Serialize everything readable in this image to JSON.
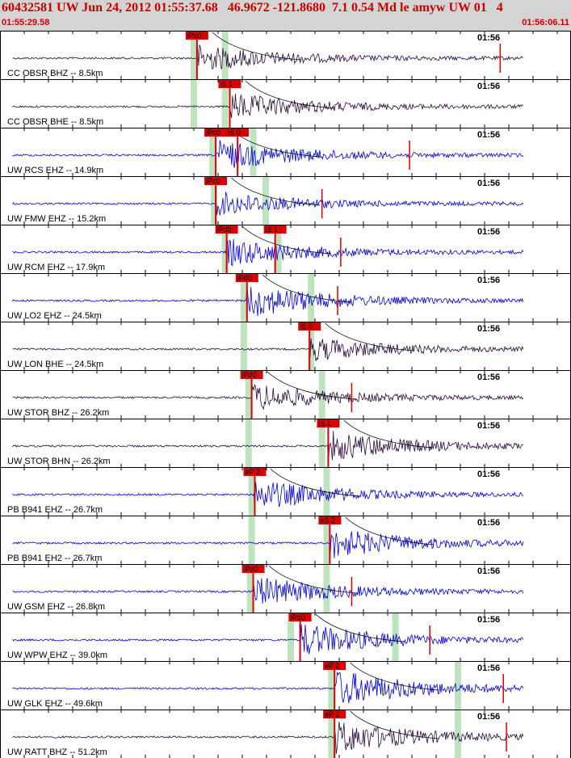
{
  "header": {
    "title": "60432581 UW Jun 24, 2012 01:55:37.68   46.9672 -121.8680  7.1 0.54 Md le amyw UW 01   4",
    "start_time": "01:55:29.58",
    "end_time": "01:56:06.11"
  },
  "colors": {
    "header_bg": "#d4d4d4",
    "header_text": "#cc0000",
    "pick": "#dd0000",
    "window": "#bfe3bf",
    "trace_blue": "#0000dd",
    "trace_dark": "#2a0a3a"
  },
  "chart_data": {
    "type": "line",
    "time_range": [
      "01:55:29.58",
      "01:56:06.11"
    ],
    "tick_label": "01:56",
    "traces": [
      {
        "label": "CC OBSR BHZ -- 8.5km",
        "color": "dark",
        "amp": 16,
        "picks": [
          {
            "t": 12.6,
            "label": "iPc0"
          }
        ],
        "windows": [
          12.4,
          14.4
        ],
        "spike": 32
      },
      {
        "label": "CC OBSR BHE -- 8.5km",
        "color": "dark",
        "amp": 16,
        "picks": [
          {
            "t": 14.7,
            "label": "iS 1"
          }
        ],
        "windows": [
          12.4,
          14.4
        ]
      },
      {
        "label": "UW RCS EHZ -- 14.9km",
        "color": "blue",
        "amp": 18,
        "picks": [
          {
            "t": 13.8,
            "label": "iPc0"
          },
          {
            "t": 15.2,
            "label": "iS 0"
          }
        ],
        "windows": [
          13.6,
          16.2
        ],
        "spike": 26.2
      },
      {
        "label": "UW FMW EHZ -- 15.2km",
        "color": "blue",
        "amp": 14,
        "picks": [
          {
            "t": 13.8,
            "label": "iPc0"
          }
        ],
        "windows": [
          13.7,
          17.0
        ],
        "spike": 20.6
      },
      {
        "label": "UW RCM EHZ -- 17.9km",
        "color": "blue",
        "amp": 16,
        "picks": [
          {
            "t": 14.5,
            "label": "iPd0"
          },
          {
            "t": 17.6,
            "label": "iS 1"
          }
        ],
        "windows": [
          14.4,
          17.8
        ],
        "spike": 21.8
      },
      {
        "label": "UW LO2 EHZ -- 24.5km",
        "color": "blue",
        "amp": 20,
        "picks": [
          {
            "t": 15.8,
            "label": "iPd0"
          }
        ],
        "windows": [
          15.6,
          19.9
        ],
        "spike": 21.6
      },
      {
        "label": "UW LON BHE -- 24.5km",
        "color": "dark",
        "amp": 14,
        "picks": [
          {
            "t": 19.8,
            "label": "iS 0"
          }
        ],
        "windows": [
          15.6,
          19.9
        ]
      },
      {
        "label": "UW STOR BHZ -- 26.2km",
        "color": "dark",
        "amp": 16,
        "picks": [
          {
            "t": 16.1,
            "label": "iPd0"
          }
        ],
        "windows": [
          15.9,
          20.6
        ],
        "spike": 22.5
      },
      {
        "label": "UW STOR BHN -- 26.2km",
        "color": "dark",
        "amp": 18,
        "picks": [
          {
            "t": 21.0,
            "label": "iS 1"
          }
        ],
        "windows": [
          15.9,
          20.6
        ]
      },
      {
        "label": "PB B941 EHZ -- 26.7km",
        "color": "blue",
        "amp": 18,
        "picks": [
          {
            "t": 16.3,
            "label": "eP 2"
          }
        ],
        "windows": [
          16.1,
          20.9
        ]
      },
      {
        "label": "PB B941 EH2 -- 26.7km",
        "color": "blue",
        "amp": 18,
        "picks": [
          {
            "t": 21.1,
            "label": "eS 2"
          }
        ],
        "windows": [
          16.1,
          20.9
        ]
      },
      {
        "label": "UW GSM EHZ -- 26.8km",
        "color": "blue",
        "amp": 18,
        "picks": [
          {
            "t": 16.2,
            "label": "iPc0"
          }
        ],
        "windows": [
          16.0,
          20.9
        ],
        "spike": 22.5
      },
      {
        "label": "UW WPW EHZ -- 39.0km",
        "color": "blue",
        "amp": 20,
        "picks": [
          {
            "t": 19.2,
            "label": "iPd0"
          }
        ],
        "windows": [
          18.6,
          25.3
        ],
        "spike": 27.5
      },
      {
        "label": "UW GLK EHZ -- 49.6km",
        "color": "blue",
        "amp": 22,
        "picks": [
          {
            "t": 21.4,
            "label": "eP 2"
          }
        ],
        "windows": [
          21.2,
          29.3
        ],
        "spike": 32.2
      },
      {
        "label": "UW RATT BHZ -- 51.2km",
        "color": "dark",
        "amp": 20,
        "picks": [
          {
            "t": 21.4,
            "label": "eP 2"
          }
        ],
        "windows": [
          21.2,
          29.3
        ],
        "spike": 32.4
      }
    ]
  }
}
